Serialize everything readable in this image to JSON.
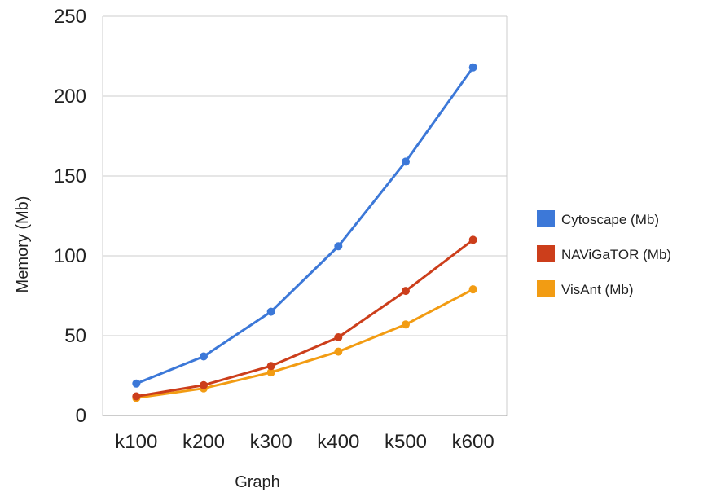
{
  "chart_data": {
    "type": "line",
    "categories": [
      "k100",
      "k200",
      "k300",
      "k400",
      "k500",
      "k600"
    ],
    "series": [
      {
        "name": "Cytoscape (Mb)",
        "color": "#3c78d8",
        "values": [
          20,
          37,
          65,
          106,
          159,
          218
        ]
      },
      {
        "name": "NAViGaTOR (Mb)",
        "color": "#cc3e1b",
        "values": [
          12,
          19,
          31,
          49,
          78,
          110
        ]
      },
      {
        "name": "VisAnt (Mb)",
        "color": "#f29c13",
        "values": [
          11,
          17,
          27,
          40,
          57,
          79
        ]
      }
    ],
    "xlabel": "Graph",
    "ylabel": "Memory (Mb)",
    "ylim": [
      0,
      250
    ],
    "yticks": [
      0,
      50,
      100,
      150,
      200,
      250
    ],
    "grid": true,
    "legend": "right"
  }
}
